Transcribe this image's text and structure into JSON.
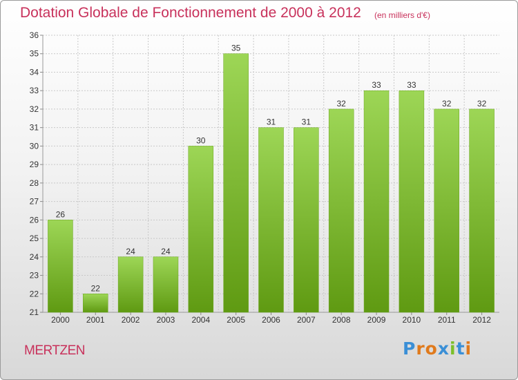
{
  "title": "Dotation Globale de Fonctionnement de 2000 à 2012",
  "subtitle": "(en milliers d'€)",
  "town": "MERTZEN",
  "brand": {
    "text": "Proxiti",
    "letter_colors": [
      "#3a8fd6",
      "#e07a1c",
      "#e07a1c",
      "#3a8fd6",
      "#7cbf2a",
      "#3a8fd6",
      "#e07a1c"
    ]
  },
  "colors": {
    "title": "#c8315b",
    "bar_top": "#9dd656",
    "bar_bottom": "#5f9a12",
    "grid": "#c8c8c8",
    "axis_text": "#333333"
  },
  "chart_data": {
    "type": "bar",
    "categories": [
      "2000",
      "2001",
      "2002",
      "2003",
      "2004",
      "2005",
      "2006",
      "2007",
      "2008",
      "2009",
      "2010",
      "2011",
      "2012"
    ],
    "values": [
      26,
      22,
      24,
      24,
      30,
      35,
      31,
      31,
      32,
      33,
      33,
      32,
      32
    ],
    "ylim": [
      21,
      36
    ],
    "yticks": [
      21,
      22,
      23,
      24,
      25,
      26,
      27,
      28,
      29,
      30,
      31,
      32,
      33,
      34,
      35,
      36
    ],
    "grid": true,
    "data_labels": true
  }
}
